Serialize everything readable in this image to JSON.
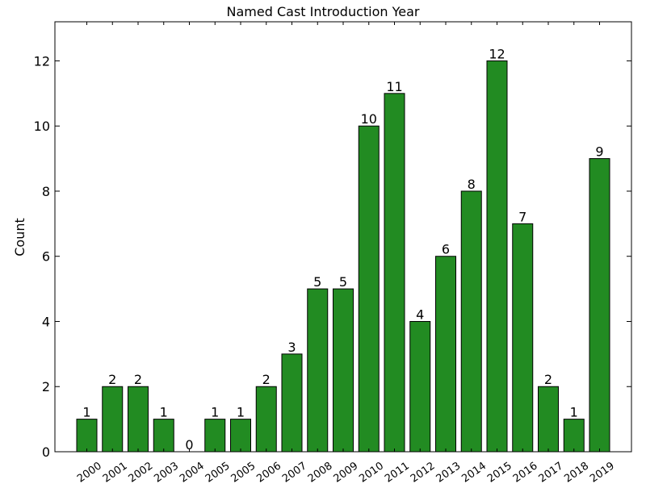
{
  "chart_data": {
    "type": "bar",
    "title": "Named Cast Introduction Year",
    "xlabel": "",
    "ylabel": "Count",
    "categories": [
      "2000",
      "2001",
      "2002",
      "2003",
      "2004",
      "2005",
      "2005",
      "2006",
      "2007",
      "2008",
      "2009",
      "2010",
      "2011",
      "2012",
      "2013",
      "2014",
      "2015",
      "2016",
      "2017",
      "2018",
      "2019"
    ],
    "values": [
      1,
      2,
      2,
      1,
      0,
      1,
      1,
      2,
      3,
      5,
      5,
      10,
      11,
      4,
      6,
      8,
      12,
      7,
      2,
      1,
      9
    ],
    "ylim": [
      0,
      13.2
    ],
    "yticks": [
      0,
      2,
      4,
      6,
      8,
      10,
      12
    ],
    "bar_color": "#228b22",
    "edge_color": "#000000",
    "grid": false,
    "show_value_labels": true
  }
}
